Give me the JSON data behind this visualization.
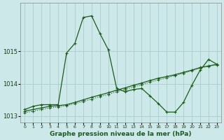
{
  "xlabel": "Graphe pression niveau de la mer (hPa)",
  "bg_color": "#cce8e8",
  "grid_color": "#aacccc",
  "line_color": "#1a5c1a",
  "x_ticks": [
    0,
    1,
    2,
    3,
    4,
    5,
    6,
    7,
    8,
    9,
    10,
    11,
    12,
    13,
    14,
    15,
    16,
    17,
    18,
    19,
    20,
    21,
    22,
    23
  ],
  "ylim": [
    1012.8,
    1016.5
  ],
  "yticks": [
    1013,
    1014,
    1015
  ],
  "series1_solid": {
    "x": [
      0,
      1,
      2,
      3,
      4,
      5,
      6,
      7,
      8,
      9,
      10,
      11,
      12,
      13,
      14,
      15,
      16,
      17,
      18,
      19,
      20,
      21,
      22,
      23
    ],
    "y": [
      1013.15,
      1013.2,
      1013.25,
      1013.3,
      1013.32,
      1013.35,
      1013.42,
      1013.5,
      1013.58,
      1013.65,
      1013.72,
      1013.8,
      1013.87,
      1013.95,
      1014.02,
      1014.1,
      1014.17,
      1014.22,
      1014.28,
      1014.35,
      1014.42,
      1014.5,
      1014.55,
      1014.6
    ]
  },
  "series2_dotted": {
    "x": [
      0,
      1,
      2,
      3,
      4,
      5,
      6,
      7,
      8,
      9,
      10,
      11,
      12,
      13,
      14,
      15,
      16,
      17,
      18,
      19,
      20,
      21,
      22,
      23
    ],
    "y": [
      1013.1,
      1013.15,
      1013.2,
      1013.25,
      1013.28,
      1013.32,
      1013.38,
      1013.45,
      1013.52,
      1013.6,
      1013.67,
      1013.75,
      1013.82,
      1013.9,
      1013.97,
      1014.05,
      1014.12,
      1014.18,
      1014.25,
      1014.32,
      1014.4,
      1014.48,
      1014.54,
      1014.58
    ]
  },
  "series3_wavy": {
    "x": [
      0,
      1,
      2,
      3,
      4,
      5,
      6,
      7,
      8,
      9,
      10,
      11,
      12,
      13,
      14,
      15,
      16,
      17,
      18,
      19,
      20,
      21,
      22,
      23
    ],
    "y": [
      1013.2,
      1013.3,
      1013.35,
      1013.35,
      1013.35,
      1014.95,
      1015.25,
      1016.05,
      1016.1,
      1015.55,
      1015.05,
      1013.85,
      1013.75,
      1013.82,
      1013.85,
      1013.62,
      1013.38,
      1013.12,
      1013.12,
      1013.42,
      1013.95,
      1014.42,
      1014.75,
      1014.6
    ]
  }
}
